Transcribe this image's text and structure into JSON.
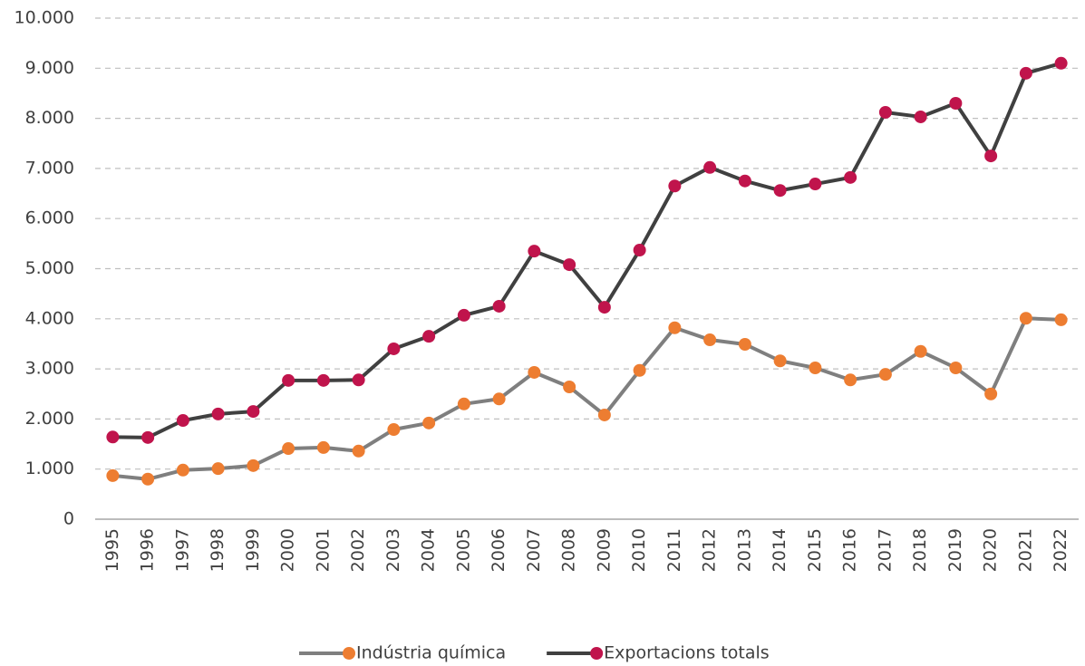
{
  "chart_data": {
    "type": "line",
    "categories": [
      "1995",
      "1996",
      "1997",
      "1998",
      "1999",
      "2000",
      "2001",
      "2002",
      "2003",
      "2004",
      "2005",
      "2006",
      "2007",
      "2008",
      "2009",
      "2010",
      "2011",
      "2012",
      "2013",
      "2014",
      "2015",
      "2016",
      "2017",
      "2018",
      "2019",
      "2020",
      "2021",
      "2022"
    ],
    "series": [
      {
        "name": "Indústria química",
        "color": "#7f7f7f",
        "marker_color": "#ed7d31",
        "values": [
          870,
          800,
          980,
          1010,
          1070,
          1410,
          1430,
          1360,
          1790,
          1920,
          2300,
          2400,
          2930,
          2640,
          2080,
          2970,
          3820,
          3580,
          3490,
          3160,
          3020,
          2780,
          2890,
          3350,
          3020,
          2500,
          4010,
          3980
        ]
      },
      {
        "name": "Exportacions totals",
        "color": "#404040",
        "marker_color": "#c0144c",
        "values": [
          1640,
          1630,
          1970,
          2100,
          2150,
          2770,
          2770,
          2780,
          3400,
          3650,
          4070,
          4250,
          5350,
          5080,
          4230,
          5370,
          6650,
          7020,
          6750,
          6560,
          6690,
          6820,
          8120,
          8030,
          8300,
          7250,
          8900,
          9100
        ]
      }
    ],
    "ylim": [
      0,
      10000
    ],
    "yticks": [
      0,
      {
        "value": 1000,
        "label": "1.000"
      },
      {
        "value": 2000,
        "label": "2.000"
      },
      {
        "value": 3000,
        "label": "3.000"
      },
      {
        "value": 4000,
        "label": "4.000"
      },
      {
        "value": 5000,
        "label": "5.000"
      },
      {
        "value": 6000,
        "label": "6.000"
      },
      {
        "value": 7000,
        "label": "7.000"
      },
      {
        "value": 8000,
        "label": "8.000"
      },
      {
        "value": 9000,
        "label": "9.000"
      },
      {
        "value": 10000,
        "label": "10.000"
      }
    ],
    "grid": true,
    "legend": "bottom"
  }
}
